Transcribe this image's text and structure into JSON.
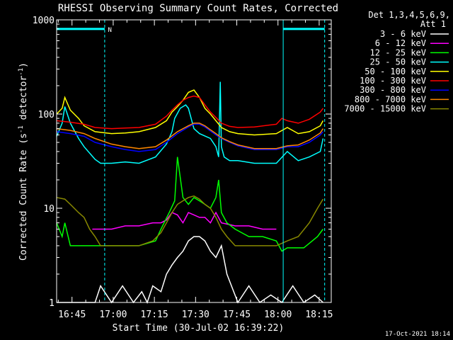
{
  "chart_data": {
    "type": "line",
    "title": "RHESSI Observing Summary Count Rates, Corrected",
    "xlabel": "Start Time (30-Jul-02 16:39:22)",
    "ylabel_parts": [
      "Corrected Count Rate (s",
      "-1",
      " detector",
      "-1",
      ")"
    ],
    "yscale": "log",
    "ylim": [
      1,
      1000
    ],
    "xlim_minutes": [
      0,
      100
    ],
    "y_ticks": [
      {
        "value": 1,
        "label": "1"
      },
      {
        "value": 10,
        "label": "10"
      },
      {
        "value": 100,
        "label": "100"
      },
      {
        "value": 1000,
        "label": "1000"
      }
    ],
    "x_ticks": [
      {
        "minute": 5.6,
        "label": "16:45"
      },
      {
        "minute": 20.6,
        "label": "17:00"
      },
      {
        "minute": 35.6,
        "label": "17:15"
      },
      {
        "minute": 50.6,
        "label": "17:30"
      },
      {
        "minute": 65.6,
        "label": "17:45"
      },
      {
        "minute": 80.6,
        "label": "18:00"
      },
      {
        "minute": 95.6,
        "label": "18:15"
      }
    ],
    "legend_header": [
      "Det 1,3,4,5,6,9,",
      "Att 1"
    ],
    "series": [
      {
        "name": "3 - 6 keV",
        "color": "#ffffff",
        "x": [
          0,
          14,
          16,
          20,
          24,
          28,
          31,
          33,
          35,
          38,
          40,
          42,
          44,
          46,
          48,
          50,
          52,
          54,
          56,
          58,
          60,
          62,
          66,
          70,
          74,
          78,
          82,
          86,
          90,
          94,
          97
        ],
        "y": [
          1,
          1,
          1.5,
          1,
          1.5,
          1,
          1.3,
          1,
          1.5,
          1.3,
          2,
          2.5,
          3,
          3.5,
          4.5,
          5,
          5,
          4.5,
          3.5,
          3,
          4,
          2,
          1,
          1.5,
          1,
          1.2,
          1,
          1.5,
          1,
          1.2,
          1
        ]
      },
      {
        "name": "6 - 12 keV",
        "color": "#ff00ff",
        "x": [
          13,
          20,
          25,
          30,
          35,
          38,
          40,
          42,
          44,
          46,
          48,
          50,
          52,
          54,
          56,
          58,
          60,
          65,
          70,
          75,
          80
        ],
        "y": [
          6,
          6,
          6.5,
          6.5,
          7,
          7,
          7.5,
          9,
          8.5,
          7,
          9,
          8.5,
          8,
          8,
          7,
          9,
          7,
          6.5,
          6.5,
          6,
          6
        ]
      },
      {
        "name": "12 - 25 keV",
        "color": "#00ff00",
        "x": [
          0,
          2,
          3,
          5,
          10,
          13,
          14,
          20,
          25,
          30,
          36,
          38,
          41,
          43,
          44,
          46,
          48,
          50,
          52,
          54,
          56,
          58,
          59,
          60,
          62,
          65,
          70,
          75,
          80,
          82,
          84,
          90,
          95,
          97
        ],
        "y": [
          7,
          5,
          7,
          4,
          4,
          4,
          4,
          4,
          4,
          4,
          4.5,
          6,
          9,
          12,
          35,
          13,
          11,
          13,
          12,
          11,
          10,
          13,
          20,
          9,
          7,
          6,
          5,
          5,
          4.5,
          3.5,
          3.8,
          3.8,
          5,
          6
        ]
      },
      {
        "name": "25 - 50 keV",
        "color": "#00ffff",
        "x": [
          0,
          2,
          3,
          5,
          8,
          10,
          14,
          16,
          20,
          25,
          30,
          36,
          40,
          42,
          43,
          45,
          47,
          48,
          50,
          52,
          56,
          58,
          59,
          59.6,
          60,
          61,
          63,
          66,
          72,
          80,
          84,
          88,
          92,
          96,
          97
        ],
        "y": [
          58,
          80,
          120,
          80,
          55,
          45,
          33,
          30,
          30,
          31,
          30,
          35,
          48,
          65,
          90,
          115,
          125,
          115,
          70,
          62,
          55,
          45,
          35,
          220,
          45,
          35,
          32,
          32,
          30,
          30,
          40,
          32,
          35,
          40,
          55
        ]
      },
      {
        "name": "50 - 100 keV",
        "color": "#ffff00",
        "x": [
          0,
          2,
          3,
          5,
          8,
          10,
          14,
          20,
          25,
          30,
          36,
          40,
          42,
          44,
          46,
          48,
          50,
          52,
          54,
          56,
          58,
          60,
          63,
          66,
          72,
          80,
          84,
          88,
          92,
          96,
          97
        ],
        "y": [
          100,
          115,
          150,
          110,
          90,
          75,
          65,
          62,
          63,
          65,
          72,
          85,
          105,
          120,
          140,
          170,
          180,
          150,
          115,
          100,
          85,
          72,
          65,
          62,
          60,
          62,
          72,
          62,
          65,
          75,
          85
        ]
      },
      {
        "name": "100 - 300 keV",
        "color": "#ff0000",
        "x": [
          0,
          5,
          10,
          14,
          20,
          25,
          30,
          36,
          40,
          42,
          44,
          46,
          48,
          50,
          52,
          54,
          56,
          58,
          60,
          63,
          66,
          72,
          80,
          82,
          84,
          88,
          92,
          96,
          97
        ],
        "y": [
          85,
          82,
          78,
          72,
          70,
          71,
          72,
          78,
          95,
          110,
          125,
          140,
          150,
          155,
          150,
          125,
          105,
          92,
          80,
          74,
          72,
          73,
          78,
          90,
          85,
          80,
          88,
          105,
          115
        ]
      },
      {
        "name": "300 - 800 keV",
        "color": "#0000ff",
        "x": [
          0,
          5,
          10,
          14,
          20,
          25,
          30,
          36,
          40,
          44,
          48,
          50,
          52,
          54,
          56,
          58,
          60,
          63,
          66,
          72,
          80,
          84,
          88,
          92,
          96,
          97
        ],
        "y": [
          65,
          62,
          58,
          50,
          45,
          42,
          40,
          42,
          50,
          62,
          73,
          78,
          78,
          73,
          66,
          60,
          55,
          50,
          46,
          42,
          42,
          45,
          45,
          50,
          60,
          65
        ]
      },
      {
        "name": "800 - 7000 keV",
        "color": "#ff8800",
        "x": [
          0,
          5,
          10,
          14,
          20,
          25,
          30,
          36,
          40,
          44,
          48,
          50,
          52,
          54,
          56,
          58,
          60,
          63,
          66,
          72,
          80,
          84,
          88,
          92,
          96,
          97
        ],
        "y": [
          70,
          67,
          62,
          55,
          48,
          45,
          43,
          45,
          53,
          65,
          75,
          80,
          80,
          75,
          68,
          62,
          56,
          51,
          47,
          43,
          43,
          46,
          47,
          53,
          63,
          70
        ]
      },
      {
        "name": "7000 - 15000 keV",
        "color": "#888800",
        "x": [
          0,
          3,
          5,
          8,
          10,
          12,
          14,
          16,
          20,
          25,
          30,
          35,
          38,
          40,
          42,
          44,
          46,
          48,
          50,
          52,
          54,
          56,
          58,
          60,
          62,
          65,
          70,
          75,
          80,
          84,
          88,
          92,
          95,
          97
        ],
        "y": [
          13,
          12.5,
          11,
          9,
          8,
          6,
          5,
          4,
          4,
          4,
          4,
          4.5,
          5.5,
          7,
          9,
          11,
          12,
          13,
          13.5,
          12.5,
          11,
          10,
          8,
          6,
          5,
          4,
          4,
          4,
          4,
          4.5,
          5,
          7,
          10,
          12.5
        ]
      }
    ],
    "guide_lines": {
      "color": "#00ffff",
      "solid_minutes": [
        0,
        82.5
      ],
      "dashed_minutes": [
        17.5,
        97.6
      ],
      "top_segments": [
        [
          0,
          17.5
        ],
        [
          82.5,
          97.6
        ]
      ],
      "top_value": 800,
      "marker_minute": 18.7,
      "marker_label": "N"
    }
  },
  "footer": {
    "timestamp": "17-Oct-2021 18:14"
  }
}
